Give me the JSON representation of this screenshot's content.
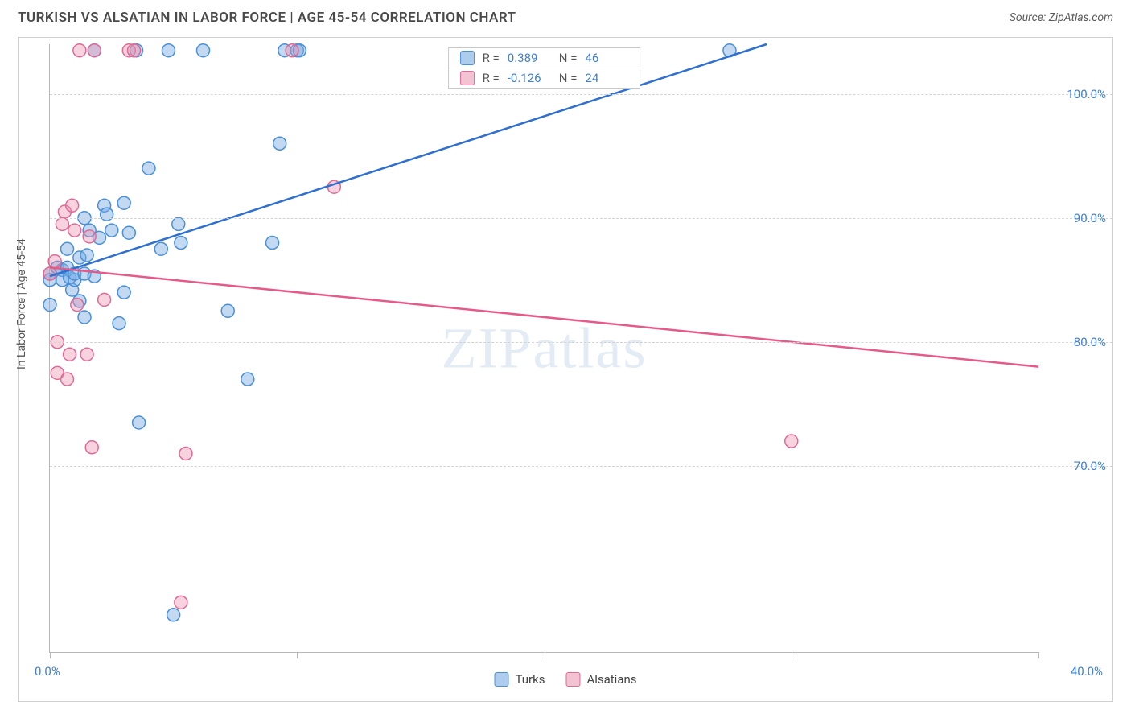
{
  "title": "TURKISH VS ALSATIAN IN LABOR FORCE | AGE 45-54 CORRELATION CHART",
  "source": "Source: ZipAtlas.com",
  "watermark": "ZIPatlas",
  "y_axis_label": "In Labor Force | Age 45-54",
  "chart": {
    "type": "scatter",
    "xlim": [
      0,
      40
    ],
    "ylim": [
      55,
      104
    ],
    "x_ticks": [
      0,
      10,
      20,
      30,
      40
    ],
    "x_tick_labels": [
      "0.0%",
      "",
      "",
      "",
      "40.0%"
    ],
    "y_ticks": [
      70,
      80,
      90,
      100
    ],
    "y_tick_labels": [
      "70.0%",
      "80.0%",
      "90.0%",
      "100.0%"
    ],
    "grid_color": "#d4d4d4",
    "axis_color": "#b8b8b8",
    "background_color": "#ffffff",
    "series": [
      {
        "name": "Turks",
        "fill": "rgba(120,170,225,0.45)",
        "stroke": "#4a90d9",
        "line_color": "#2f6fcf",
        "R": "0.389",
        "N": "46",
        "marker_r": 8,
        "regression": {
          "x1": 0,
          "y1": 85.3,
          "x2": 29,
          "y2": 104
        },
        "points": [
          [
            0,
            85
          ],
          [
            0,
            85.5
          ],
          [
            0,
            83
          ],
          [
            0.3,
            86
          ],
          [
            0.5,
            85.8
          ],
          [
            0.5,
            85
          ],
          [
            0.7,
            86
          ],
          [
            0.7,
            87.5
          ],
          [
            0.8,
            85.2
          ],
          [
            0.9,
            84.2
          ],
          [
            1,
            85
          ],
          [
            1,
            85.5
          ],
          [
            1.2,
            83.3
          ],
          [
            1.2,
            86.8
          ],
          [
            1.4,
            82
          ],
          [
            1.4,
            90
          ],
          [
            1.4,
            85.5
          ],
          [
            1.5,
            87
          ],
          [
            1.6,
            89
          ],
          [
            1.8,
            85.3
          ],
          [
            1.8,
            103.5
          ],
          [
            2,
            88.4
          ],
          [
            2.2,
            91
          ],
          [
            2.3,
            90.3
          ],
          [
            2.5,
            89
          ],
          [
            2.8,
            81.5
          ],
          [
            3,
            84
          ],
          [
            3,
            91.2
          ],
          [
            3.2,
            88.8
          ],
          [
            3.5,
            103.5
          ],
          [
            3.6,
            73.5
          ],
          [
            4,
            94
          ],
          [
            4.5,
            87.5
          ],
          [
            4.8,
            103.5
          ],
          [
            5,
            58
          ],
          [
            5.2,
            89.5
          ],
          [
            5.3,
            88
          ],
          [
            6.2,
            103.5
          ],
          [
            7.2,
            82.5
          ],
          [
            8,
            77
          ],
          [
            9,
            88
          ],
          [
            9.3,
            96
          ],
          [
            9.5,
            103.5
          ],
          [
            10,
            103.5
          ],
          [
            10.1,
            103.5
          ],
          [
            27.5,
            103.5
          ]
        ]
      },
      {
        "name": "Alsatians",
        "fill": "rgba(235,145,175,0.40)",
        "stroke": "#e06a95",
        "line_color": "#e65a8a",
        "R": "-0.126",
        "N": "24",
        "marker_r": 8,
        "regression": {
          "x1": 0,
          "y1": 86,
          "x2": 40,
          "y2": 78
        },
        "points": [
          [
            0,
            85.5
          ],
          [
            0.2,
            86.5
          ],
          [
            0.3,
            80
          ],
          [
            0.3,
            77.5
          ],
          [
            0.5,
            89.5
          ],
          [
            0.6,
            90.5
          ],
          [
            0.7,
            77
          ],
          [
            0.8,
            79
          ],
          [
            0.9,
            91
          ],
          [
            1,
            89
          ],
          [
            1.1,
            83
          ],
          [
            1.2,
            103.5
          ],
          [
            1.5,
            79
          ],
          [
            1.6,
            88.5
          ],
          [
            1.7,
            71.5
          ],
          [
            1.8,
            103.5
          ],
          [
            2.2,
            83.4
          ],
          [
            3.2,
            103.5
          ],
          [
            3.4,
            103.5
          ],
          [
            5.3,
            59
          ],
          [
            5.5,
            71
          ],
          [
            9.8,
            103.5
          ],
          [
            11.5,
            92.5
          ],
          [
            30,
            72
          ]
        ]
      }
    ]
  },
  "stat_box": {
    "rows": [
      {
        "swatch_fill": "rgba(120,170,225,0.6)",
        "swatch_stroke": "#4a90d9",
        "r": "0.389",
        "n": "46"
      },
      {
        "swatch_fill": "rgba(235,145,175,0.55)",
        "swatch_stroke": "#e06a95",
        "r": "-0.126",
        "n": "24"
      }
    ],
    "labels": {
      "r": "R =",
      "n": "N ="
    }
  },
  "legend": [
    {
      "label": "Turks",
      "fill": "rgba(120,170,225,0.6)",
      "stroke": "#4a90d9"
    },
    {
      "label": "Alsatians",
      "fill": "rgba(235,145,175,0.55)",
      "stroke": "#e06a95"
    }
  ]
}
